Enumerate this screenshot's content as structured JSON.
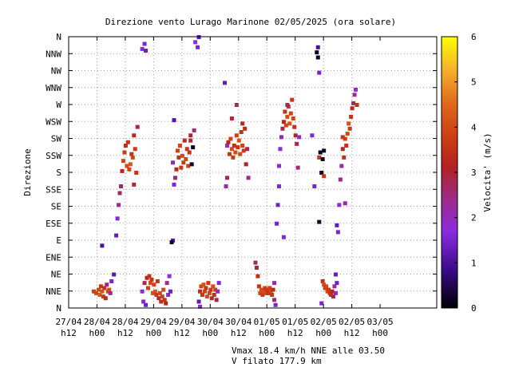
{
  "chart_data": {
    "type": "scatter",
    "title": "Direzione vento Lurago Marinone 02/05/2025 (ora solare)",
    "ylabel": "Direzione",
    "colorbar_label": "Velocita' (m/s)",
    "colorbar_range": [
      0,
      6
    ],
    "colorbar_ticks": [
      "0",
      "1",
      "2",
      "3",
      "4",
      "5",
      "6"
    ],
    "y_categories": [
      "N",
      "NNE",
      "NE",
      "ENE",
      "E",
      "ESE",
      "SE",
      "SSE",
      "S",
      "SSW",
      "SW",
      "WSW",
      "W",
      "WNW",
      "NW",
      "NNW",
      "N"
    ],
    "x_range_hours": [
      0,
      156
    ],
    "x_ticks": [
      {
        "h": 0,
        "line1": "27/04",
        "line2": "h12"
      },
      {
        "h": 12,
        "line1": "28/04",
        "line2": "h00"
      },
      {
        "h": 24,
        "line1": "28/04",
        "line2": "h12"
      },
      {
        "h": 36,
        "line1": "29/04",
        "line2": "h00"
      },
      {
        "h": 48,
        "line1": "29/04",
        "line2": "h12"
      },
      {
        "h": 60,
        "line1": "30/04",
        "line2": "h00"
      },
      {
        "h": 72,
        "line1": "30/04",
        "line2": "h12"
      },
      {
        "h": 84,
        "line1": "01/05",
        "line2": "h00"
      },
      {
        "h": 96,
        "line1": "01/05",
        "line2": "h12"
      },
      {
        "h": 108,
        "line1": "02/05",
        "line2": "h00"
      },
      {
        "h": 120,
        "line1": "02/05",
        "line2": "h12"
      },
      {
        "h": 132,
        "line1": "03/05",
        "line2": "h00"
      }
    ],
    "points": [
      [
        10.5,
        1.0,
        3.8
      ],
      [
        11.5,
        0.9,
        3.9
      ],
      [
        12.5,
        1.1,
        4.0
      ],
      [
        13.0,
        0.8,
        4.2
      ],
      [
        13.5,
        1.3,
        3.6
      ],
      [
        14.0,
        1.0,
        4.1
      ],
      [
        14.5,
        0.7,
        3.7
      ],
      [
        15.0,
        1.2,
        3.5
      ],
      [
        15.5,
        0.6,
        3.3
      ],
      [
        16.0,
        1.4,
        2.6
      ],
      [
        16.5,
        1.0,
        3.9
      ],
      [
        17.0,
        1.1,
        4.0
      ],
      [
        17.5,
        0.9,
        2.2
      ],
      [
        18.0,
        1.6,
        1.5
      ],
      [
        19.0,
        2.0,
        1.2
      ],
      [
        14.0,
        3.7,
        1.0
      ],
      [
        20.0,
        4.3,
        1.3
      ],
      [
        20.5,
        5.3,
        1.6
      ],
      [
        21.0,
        6.1,
        2.2
      ],
      [
        21.5,
        6.8,
        2.7
      ],
      [
        22.0,
        7.2,
        2.6
      ],
      [
        22.5,
        8.1,
        3.2
      ],
      [
        23.0,
        8.7,
        3.9
      ],
      [
        23.5,
        9.2,
        3.7
      ],
      [
        24.0,
        9.6,
        3.4
      ],
      [
        24.5,
        8.4,
        4.0
      ],
      [
        25.0,
        9.8,
        3.6
      ],
      [
        25.5,
        8.2,
        3.8
      ],
      [
        26.0,
        8.5,
        4.2
      ],
      [
        26.5,
        9.1,
        3.5
      ],
      [
        27.0,
        8.9,
        3.9
      ],
      [
        27.5,
        10.2,
        3.3
      ],
      [
        28.0,
        9.4,
        3.7
      ],
      [
        28.5,
        8.0,
        3.6
      ],
      [
        29.0,
        10.7,
        2.9
      ],
      [
        27.5,
        7.3,
        3.0
      ],
      [
        31.0,
        15.3,
        1.6
      ],
      [
        32.0,
        15.6,
        1.5
      ],
      [
        32.5,
        15.2,
        1.4
      ],
      [
        31.0,
        1.0,
        1.8
      ],
      [
        31.5,
        0.4,
        1.6
      ],
      [
        32.0,
        1.5,
        2.8
      ],
      [
        32.5,
        0.2,
        1.4
      ],
      [
        33.0,
        1.8,
        3.2
      ],
      [
        33.5,
        1.2,
        3.8
      ],
      [
        34.0,
        1.9,
        3.5
      ],
      [
        34.5,
        1.5,
        4.0
      ],
      [
        35.0,
        1.7,
        3.6
      ],
      [
        35.5,
        0.9,
        4.1
      ],
      [
        36.0,
        1.4,
        3.9
      ],
      [
        36.5,
        1.0,
        4.2
      ],
      [
        37.0,
        0.8,
        3.7
      ],
      [
        37.5,
        1.6,
        3.5
      ],
      [
        38.0,
        0.6,
        3.3
      ],
      [
        38.5,
        0.9,
        3.9
      ],
      [
        39.0,
        0.4,
        3.4
      ],
      [
        39.5,
        0.7,
        3.8
      ],
      [
        40.0,
        1.1,
        4.0
      ],
      [
        40.5,
        0.5,
        3.6
      ],
      [
        41.0,
        0.3,
        3.2
      ],
      [
        41.5,
        1.5,
        2.5
      ],
      [
        42.0,
        0.8,
        1.9
      ],
      [
        42.5,
        1.9,
        1.7
      ],
      [
        43.0,
        1.0,
        1.4
      ],
      [
        44.0,
        4.0,
        1.2
      ],
      [
        43.5,
        3.9,
        0.2
      ],
      [
        44.5,
        7.3,
        1.5
      ],
      [
        45.0,
        7.7,
        2.6
      ],
      [
        44.0,
        8.6,
        2.1
      ],
      [
        45.5,
        8.2,
        3.2
      ],
      [
        46.0,
        9.3,
        3.8
      ],
      [
        46.5,
        8.9,
        3.5
      ],
      [
        47.0,
        9.6,
        3.9
      ],
      [
        47.5,
        8.3,
        3.6
      ],
      [
        48.0,
        9.0,
        4.0
      ],
      [
        48.5,
        8.6,
        3.7
      ],
      [
        49.0,
        9.9,
        3.4
      ],
      [
        49.5,
        8.8,
        3.9
      ],
      [
        50.0,
        9.4,
        3.6
      ],
      [
        50.5,
        8.4,
        3.8
      ],
      [
        51.0,
        9.2,
        3.5
      ],
      [
        51.5,
        10.2,
        3.2
      ],
      [
        52.0,
        8.5,
        0.3
      ],
      [
        52.5,
        9.5,
        0.2
      ],
      [
        44.5,
        11.1,
        1.1
      ],
      [
        53.0,
        10.5,
        2.5
      ],
      [
        51.5,
        9.9,
        3.0
      ],
      [
        55.0,
        16.0,
        1.2
      ],
      [
        54.5,
        15.4,
        1.5
      ],
      [
        53.5,
        15.7,
        1.7
      ],
      [
        55.0,
        0.4,
        1.3
      ],
      [
        55.5,
        0.1,
        1.8
      ],
      [
        55.5,
        1.0,
        3.4
      ],
      [
        56.0,
        1.3,
        3.9
      ],
      [
        56.5,
        0.8,
        3.6
      ],
      [
        57.0,
        1.4,
        4.1
      ],
      [
        57.5,
        1.0,
        3.8
      ],
      [
        58.0,
        1.2,
        3.5
      ],
      [
        58.5,
        0.7,
        4.0
      ],
      [
        59.0,
        1.5,
        3.7
      ],
      [
        59.5,
        0.9,
        3.9
      ],
      [
        60.0,
        1.1,
        3.6
      ],
      [
        60.5,
        0.6,
        3.3
      ],
      [
        61.0,
        1.3,
        4.0
      ],
      [
        61.5,
        0.8,
        3.5
      ],
      [
        62.0,
        1.1,
        3.8
      ],
      [
        62.5,
        0.5,
        2.9
      ],
      [
        63.0,
        1.0,
        2.0
      ],
      [
        63.5,
        1.5,
        1.6
      ],
      [
        66.0,
        13.3,
        1.3
      ],
      [
        66.5,
        7.2,
        2.2
      ],
      [
        67.0,
        7.7,
        2.7
      ],
      [
        67.0,
        9.6,
        1.9
      ],
      [
        67.5,
        9.8,
        3.2
      ],
      [
        68.0,
        9.1,
        3.6
      ],
      [
        68.5,
        10.0,
        3.9
      ],
      [
        69.0,
        9.4,
        4.1
      ],
      [
        69.5,
        8.9,
        3.7
      ],
      [
        70.0,
        9.6,
        3.5
      ],
      [
        70.5,
        9.2,
        4.0
      ],
      [
        71.0,
        10.2,
        3.8
      ],
      [
        71.5,
        9.5,
        3.6
      ],
      [
        72.0,
        9.9,
        4.1
      ],
      [
        72.5,
        9.1,
        3.9
      ],
      [
        73.0,
        10.4,
        3.5
      ],
      [
        73.5,
        9.6,
        3.8
      ],
      [
        74.0,
        9.3,
        3.7
      ],
      [
        74.5,
        10.6,
        3.3
      ],
      [
        75.0,
        8.5,
        3.1
      ],
      [
        75.5,
        9.4,
        2.8
      ],
      [
        76.0,
        7.7,
        2.4
      ],
      [
        69.0,
        11.2,
        2.9
      ],
      [
        71.0,
        12.0,
        2.7
      ],
      [
        73.5,
        10.9,
        3.3
      ],
      [
        79.0,
        2.7,
        2.7
      ],
      [
        79.5,
        2.4,
        3.0
      ],
      [
        80.0,
        1.9,
        3.4
      ],
      [
        80.5,
        1.3,
        3.6
      ],
      [
        81.0,
        0.9,
        3.9
      ],
      [
        81.5,
        1.1,
        4.0
      ],
      [
        82.0,
        0.8,
        3.7
      ],
      [
        82.5,
        1.0,
        4.1
      ],
      [
        83.0,
        1.2,
        3.8
      ],
      [
        83.5,
        0.9,
        3.9
      ],
      [
        84.0,
        1.1,
        3.6
      ],
      [
        84.5,
        0.9,
        3.5
      ],
      [
        85.0,
        1.2,
        3.8
      ],
      [
        85.5,
        1.0,
        3.9
      ],
      [
        86.0,
        0.8,
        3.7
      ],
      [
        86.5,
        1.1,
        3.3
      ],
      [
        87.0,
        0.5,
        2.6
      ],
      [
        87.5,
        0.2,
        1.5
      ],
      [
        87.0,
        1.5,
        2.2
      ],
      [
        88.0,
        5.0,
        1.5
      ],
      [
        88.5,
        6.1,
        1.4
      ],
      [
        89.0,
        7.2,
        1.6
      ],
      [
        89.0,
        8.4,
        1.7
      ],
      [
        89.5,
        9.4,
        1.8
      ],
      [
        90.0,
        10.1,
        2.0
      ],
      [
        90.5,
        10.6,
        2.8
      ],
      [
        91.0,
        11.0,
        3.2
      ],
      [
        91.5,
        11.6,
        3.5
      ],
      [
        92.0,
        10.8,
        3.9
      ],
      [
        92.5,
        11.3,
        4.0
      ],
      [
        93.0,
        11.9,
        3.7
      ],
      [
        93.5,
        10.9,
        4.1
      ],
      [
        94.0,
        11.5,
        3.8
      ],
      [
        94.5,
        12.3,
        3.6
      ],
      [
        95.0,
        11.2,
        3.9
      ],
      [
        95.5,
        10.7,
        3.5
      ],
      [
        96.0,
        10.2,
        3.0
      ],
      [
        96.5,
        9.7,
        2.8
      ],
      [
        97.0,
        8.3,
        2.6
      ],
      [
        97.5,
        10.1,
        1.9
      ],
      [
        91.0,
        4.2,
        1.6
      ],
      [
        92.5,
        12.0,
        2.7
      ],
      [
        105.0,
        15.1,
        0.2
      ],
      [
        105.5,
        14.8,
        0.3
      ],
      [
        105.5,
        15.4,
        1.0
      ],
      [
        106.0,
        13.9,
        1.5
      ],
      [
        106.0,
        8.9,
        3.6
      ],
      [
        106.5,
        9.2,
        0.2
      ],
      [
        107.0,
        8.0,
        0.2
      ],
      [
        107.5,
        8.8,
        0.2
      ],
      [
        108.0,
        9.3,
        0.3
      ],
      [
        108.0,
        7.8,
        3.7
      ],
      [
        104.0,
        7.2,
        1.5
      ],
      [
        106.0,
        5.1,
        0.3
      ],
      [
        103.0,
        10.2,
        1.6
      ],
      [
        107.5,
        1.6,
        3.5
      ],
      [
        108.0,
        1.4,
        4.0
      ],
      [
        108.5,
        1.2,
        3.8
      ],
      [
        109.0,
        1.3,
        3.9
      ],
      [
        109.5,
        1.0,
        4.1
      ],
      [
        110.0,
        1.1,
        3.7
      ],
      [
        110.5,
        0.9,
        3.6
      ],
      [
        111.0,
        0.8,
        3.5
      ],
      [
        111.5,
        1.0,
        3.2
      ],
      [
        112.0,
        0.7,
        2.9
      ],
      [
        112.5,
        1.3,
        2.3
      ],
      [
        113.0,
        0.9,
        1.9
      ],
      [
        113.5,
        1.5,
        1.4
      ],
      [
        113.0,
        2.0,
        1.3
      ],
      [
        107.0,
        0.3,
        1.5
      ],
      [
        113.5,
        4.9,
        1.3
      ],
      [
        114.0,
        4.5,
        1.5
      ],
      [
        114.5,
        6.1,
        1.7
      ],
      [
        115.0,
        7.6,
        2.4
      ],
      [
        115.5,
        8.4,
        2.1
      ],
      [
        116.0,
        9.4,
        3.2
      ],
      [
        116.5,
        8.9,
        3.5
      ],
      [
        117.0,
        10.0,
        3.8
      ],
      [
        117.5,
        9.6,
        3.6
      ],
      [
        118.0,
        10.3,
        3.9
      ],
      [
        118.5,
        10.9,
        4.1
      ],
      [
        119.0,
        10.6,
        3.7
      ],
      [
        119.5,
        11.3,
        3.5
      ],
      [
        120.0,
        11.8,
        3.3
      ],
      [
        120.5,
        12.1,
        2.7
      ],
      [
        121.0,
        12.6,
        2.4
      ],
      [
        121.5,
        12.9,
        1.8
      ],
      [
        122.0,
        12.0,
        3.5
      ],
      [
        116.0,
        10.1,
        3.6
      ],
      [
        117.0,
        6.2,
        2.2
      ]
    ]
  }
}
